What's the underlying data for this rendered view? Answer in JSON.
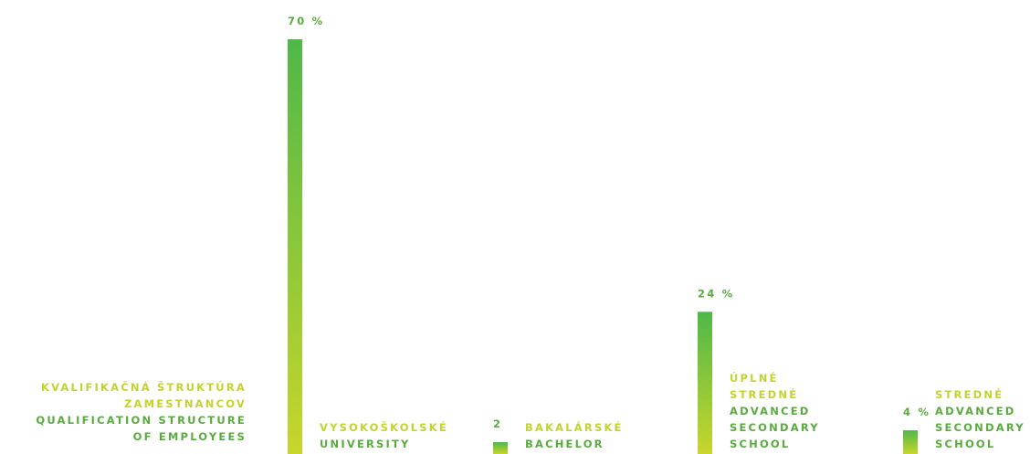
{
  "chart_data": {
    "type": "bar",
    "title": [
      "KVALIFIKAČNÁ ŠTRUKTÚRA",
      "ZAMESTNANCOV"
    ],
    "subtitle": [
      "QUALIFICATION STRUCTURE",
      "OF EMPLOYEES"
    ],
    "categories": [
      {
        "sk": [
          "VYSOKOŠKOLSKÉ"
        ],
        "en": [
          "UNIVERSITY"
        ]
      },
      {
        "sk": [
          "BAKALÁRSKÉ"
        ],
        "en": [
          "BACHELOR"
        ]
      },
      {
        "sk": [
          "ÚPLNÉ",
          "STREDNÉ"
        ],
        "en": [
          "ADVANCED",
          "SECONDARY",
          "SCHOOL"
        ]
      },
      {
        "sk": [
          "STREDNÉ"
        ],
        "en": [
          "ADVANCED",
          "SECONDARY",
          "SCHOOL"
        ]
      }
    ],
    "values": [
      70,
      2,
      24,
      4
    ],
    "value_labels": [
      "70 %",
      "2",
      "24 %",
      "4 %"
    ],
    "color_top": "#4fb848",
    "color_bottom": "#c8d62b",
    "text_color_sk": "#c3d32e",
    "text_color_en": "#5aab3f"
  }
}
